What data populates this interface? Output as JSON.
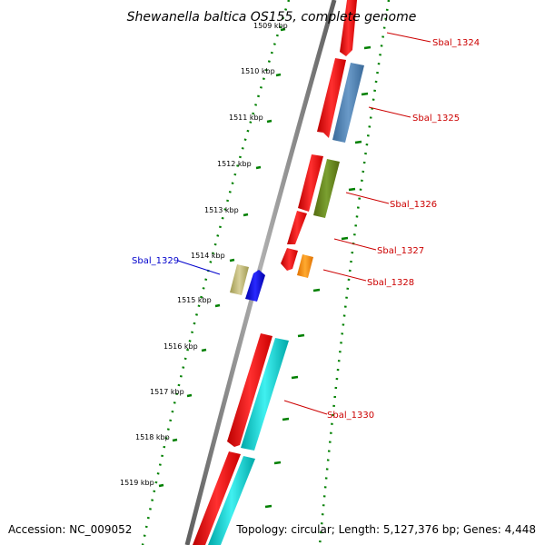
{
  "title": "Shewanella baltica OS155, complete genome",
  "footer": {
    "accession": "Accession: NC_009052",
    "info": "Topology: circular; Length: 5,127,376 bp; Genes: 4,448"
  },
  "position_scale": {
    "ticks": [
      "1509 kbp",
      "1510 kbp",
      "1511 kbp",
      "1512 kbp",
      "1513 kbp",
      "1514 kbp",
      "1515 kbp",
      "1516 kbp",
      "1517 kbp",
      "1518 kbp",
      "1519 kbp"
    ]
  },
  "colors": {
    "backbone": "#808080",
    "scale_dots": "#008000",
    "cds": "#ff0000",
    "label_forward": "#cc0000",
    "label_reverse": "#0000cc"
  },
  "genes": [
    {
      "name": "Sbal_1324",
      "strand": "+",
      "category_color": "#ff0000"
    },
    {
      "name": "Sbal_1325",
      "strand": "-",
      "category_color": "#4f7fb0"
    },
    {
      "name": "Sbal_1326",
      "strand": "-",
      "category_color": "#6a8f22"
    },
    {
      "name": "Sbal_1327",
      "strand": "-",
      "category_color": "#ff0000"
    },
    {
      "name": "Sbal_1328",
      "strand": "-",
      "category_color": "#ff8c00"
    },
    {
      "name": "Sbal_1329",
      "strand": "+",
      "category_color": "#bdb76b"
    },
    {
      "name": "Sbal_1330",
      "strand": "-",
      "category_color": "#00c8c8"
    }
  ]
}
